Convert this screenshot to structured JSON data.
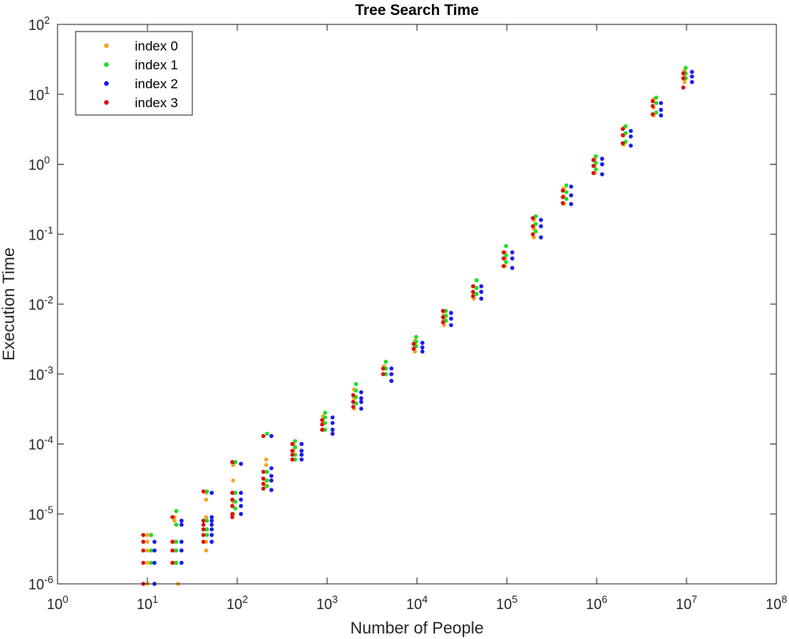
{
  "chart_data": {
    "type": "scatter",
    "title": "Tree Search Time",
    "xlabel": "Number of People",
    "ylabel": "Execution Time",
    "xscale": "log",
    "yscale": "log",
    "xlim": [
      1,
      100000000
    ],
    "ylim": [
      1e-06,
      100
    ],
    "grid": false,
    "legend_position": "top-left",
    "x_ticks": [
      {
        "base": "10",
        "exp": "0",
        "value": 1
      },
      {
        "base": "10",
        "exp": "1",
        "value": 10
      },
      {
        "base": "10",
        "exp": "2",
        "value": 100
      },
      {
        "base": "10",
        "exp": "3",
        "value": 1000
      },
      {
        "base": "10",
        "exp": "4",
        "value": 10000
      },
      {
        "base": "10",
        "exp": "5",
        "value": 100000
      },
      {
        "base": "10",
        "exp": "6",
        "value": 1000000
      },
      {
        "base": "10",
        "exp": "7",
        "value": 10000000
      },
      {
        "base": "10",
        "exp": "8",
        "value": 100000000
      }
    ],
    "y_ticks": [
      {
        "base": "10",
        "exp": "-6",
        "value": 1e-06
      },
      {
        "base": "10",
        "exp": "-5",
        "value": 1e-05
      },
      {
        "base": "10",
        "exp": "-4",
        "value": 0.0001
      },
      {
        "base": "10",
        "exp": "-3",
        "value": 0.001
      },
      {
        "base": "10",
        "exp": "-2",
        "value": 0.01
      },
      {
        "base": "10",
        "exp": "-1",
        "value": 0.1
      },
      {
        "base": "10",
        "exp": "0",
        "value": 1
      },
      {
        "base": "10",
        "exp": "1",
        "value": 10
      },
      {
        "base": "10",
        "exp": "2",
        "value": 100
      }
    ],
    "series": [
      {
        "name": "index 0",
        "color": "#f5a623",
        "points": [
          [
            10,
            5e-06
          ],
          [
            10,
            4e-06
          ],
          [
            10,
            3e-06
          ],
          [
            10,
            2e-06
          ],
          [
            10,
            1e-06
          ],
          [
            20,
            9e-06
          ],
          [
            20,
            8e-06
          ],
          [
            20,
            4e-06
          ],
          [
            20,
            3e-06
          ],
          [
            20,
            2e-06
          ],
          [
            22,
            1e-06
          ],
          [
            45,
            2e-05
          ],
          [
            45,
            1.6e-05
          ],
          [
            45,
            9e-06
          ],
          [
            45,
            6e-06
          ],
          [
            45,
            4e-06
          ],
          [
            45,
            3e-06
          ],
          [
            90,
            5e-05
          ],
          [
            90,
            3e-05
          ],
          [
            90,
            2e-05
          ],
          [
            90,
            1.5e-05
          ],
          [
            90,
            1e-05
          ],
          [
            210,
            6e-05
          ],
          [
            210,
            5e-05
          ],
          [
            210,
            4e-05
          ],
          [
            210,
            3e-05
          ],
          [
            210,
            2.5e-05
          ],
          [
            420,
            0.0001
          ],
          [
            420,
            8e-05
          ],
          [
            420,
            6e-05
          ],
          [
            900,
            0.00025
          ],
          [
            900,
            0.0002
          ],
          [
            900,
            0.00016
          ],
          [
            2000,
            0.0006
          ],
          [
            2000,
            0.00045
          ],
          [
            2000,
            0.00032
          ],
          [
            4300,
            0.0013
          ],
          [
            4300,
            0.001
          ],
          [
            9500,
            0.003
          ],
          [
            9500,
            0.0025
          ],
          [
            9500,
            0.0021
          ],
          [
            20000,
            0.007
          ],
          [
            20000,
            0.006
          ],
          [
            20000,
            0.005
          ],
          [
            43000,
            0.018
          ],
          [
            43000,
            0.014
          ],
          [
            43000,
            0.012
          ],
          [
            95000,
            0.055
          ],
          [
            95000,
            0.045
          ],
          [
            95000,
            0.035
          ],
          [
            200000,
            0.16
          ],
          [
            200000,
            0.12
          ],
          [
            200000,
            0.09
          ],
          [
            430000,
            0.45
          ],
          [
            430000,
            0.35
          ],
          [
            430000,
            0.27
          ],
          [
            950000,
            1.2
          ],
          [
            950000,
            0.95
          ],
          [
            950000,
            0.75
          ],
          [
            2000000,
            3.3
          ],
          [
            2000000,
            2.6
          ],
          [
            2000000,
            1.9
          ],
          [
            4300000,
            8.5
          ],
          [
            4300000,
            6.5
          ],
          [
            4300000,
            5
          ],
          [
            9500000,
            22
          ],
          [
            9500000,
            18
          ],
          [
            9500000,
            15
          ]
        ]
      },
      {
        "name": "index 1",
        "color": "#22dd22",
        "points": [
          [
            11,
            5e-06
          ],
          [
            11,
            3e-06
          ],
          [
            11,
            2e-06
          ],
          [
            21,
            1.1e-05
          ],
          [
            21,
            7e-06
          ],
          [
            21,
            4e-06
          ],
          [
            21,
            3e-06
          ],
          [
            21,
            2e-06
          ],
          [
            46,
            2.1e-05
          ],
          [
            46,
            8e-06
          ],
          [
            46,
            6e-06
          ],
          [
            46,
            5e-06
          ],
          [
            95,
            5.5e-05
          ],
          [
            95,
            2e-05
          ],
          [
            95,
            1.5e-05
          ],
          [
            95,
            1.2e-05
          ],
          [
            215,
            0.00014
          ],
          [
            215,
            4e-05
          ],
          [
            215,
            3e-05
          ],
          [
            215,
            2.5e-05
          ],
          [
            440,
            0.00011
          ],
          [
            440,
            9e-05
          ],
          [
            440,
            7e-05
          ],
          [
            440,
            6e-05
          ],
          [
            950,
            0.00028
          ],
          [
            950,
            0.00024
          ],
          [
            950,
            0.0002
          ],
          [
            950,
            0.00016
          ],
          [
            2100,
            0.00072
          ],
          [
            2100,
            0.00058
          ],
          [
            2100,
            0.00047
          ],
          [
            2100,
            0.00038
          ],
          [
            4500,
            0.0015
          ],
          [
            4500,
            0.0012
          ],
          [
            4500,
            0.001
          ],
          [
            9800,
            0.0034
          ],
          [
            9800,
            0.0029
          ],
          [
            9800,
            0.0025
          ],
          [
            21000,
            0.008
          ],
          [
            21000,
            0.0068
          ],
          [
            21000,
            0.0058
          ],
          [
            46000,
            0.022
          ],
          [
            46000,
            0.017
          ],
          [
            46000,
            0.014
          ],
          [
            98000,
            0.068
          ],
          [
            98000,
            0.05
          ],
          [
            98000,
            0.04
          ],
          [
            210000,
            0.18
          ],
          [
            210000,
            0.14
          ],
          [
            210000,
            0.11
          ],
          [
            460000,
            0.5
          ],
          [
            460000,
            0.4
          ],
          [
            460000,
            0.32
          ],
          [
            980000,
            1.3
          ],
          [
            980000,
            1.05
          ],
          [
            980000,
            0.85
          ],
          [
            2100000,
            3.5
          ],
          [
            2100000,
            2.8
          ],
          [
            2100000,
            2.1
          ],
          [
            4600000,
            9
          ],
          [
            4600000,
            7.5
          ],
          [
            4600000,
            5.5
          ],
          [
            9800000,
            24
          ],
          [
            9800000,
            20
          ],
          [
            9800000,
            17
          ]
        ]
      },
      {
        "name": "index 2",
        "color": "#1a1aee",
        "points": [
          [
            12,
            4e-06
          ],
          [
            12,
            3e-06
          ],
          [
            12,
            2e-06
          ],
          [
            12,
            1e-06
          ],
          [
            24,
            8e-06
          ],
          [
            24,
            7e-06
          ],
          [
            24,
            4e-06
          ],
          [
            24,
            3e-06
          ],
          [
            24,
            2e-06
          ],
          [
            52,
            2e-05
          ],
          [
            52,
            9e-06
          ],
          [
            52,
            8e-06
          ],
          [
            52,
            7e-06
          ],
          [
            52,
            6e-06
          ],
          [
            52,
            5e-06
          ],
          [
            52,
            4e-06
          ],
          [
            110,
            5.2e-05
          ],
          [
            110,
            2e-05
          ],
          [
            110,
            1.6e-05
          ],
          [
            110,
            1.3e-05
          ],
          [
            110,
            1e-05
          ],
          [
            240,
            0.00013
          ],
          [
            240,
            4.5e-05
          ],
          [
            240,
            3.5e-05
          ],
          [
            240,
            3e-05
          ],
          [
            240,
            2.2e-05
          ],
          [
            520,
            0.0001
          ],
          [
            520,
            8e-05
          ],
          [
            520,
            7e-05
          ],
          [
            520,
            6e-05
          ],
          [
            1150,
            0.00024
          ],
          [
            1150,
            0.0002
          ],
          [
            1150,
            0.00016
          ],
          [
            1150,
            0.00014
          ],
          [
            2400,
            0.00055
          ],
          [
            2400,
            0.00045
          ],
          [
            2400,
            0.0004
          ],
          [
            2400,
            0.00032
          ],
          [
            5200,
            0.0012
          ],
          [
            5200,
            0.001
          ],
          [
            5200,
            0.0008
          ],
          [
            11500,
            0.0028
          ],
          [
            11500,
            0.0024
          ],
          [
            11500,
            0.0021
          ],
          [
            24000,
            0.0075
          ],
          [
            24000,
            0.0062
          ],
          [
            24000,
            0.005
          ],
          [
            52000,
            0.018
          ],
          [
            52000,
            0.015
          ],
          [
            52000,
            0.012
          ],
          [
            115000,
            0.055
          ],
          [
            115000,
            0.045
          ],
          [
            115000,
            0.033
          ],
          [
            240000,
            0.16
          ],
          [
            240000,
            0.13
          ],
          [
            240000,
            0.09
          ],
          [
            520000,
            0.48
          ],
          [
            520000,
            0.36
          ],
          [
            520000,
            0.27
          ],
          [
            1150000,
            1.2
          ],
          [
            1150000,
            1
          ],
          [
            1150000,
            0.72
          ],
          [
            2400000,
            3
          ],
          [
            2400000,
            2.5
          ],
          [
            2400000,
            1.85
          ],
          [
            5200000,
            7.5
          ],
          [
            5200000,
            6
          ],
          [
            5200000,
            5
          ],
          [
            11500000,
            21
          ],
          [
            11500000,
            18
          ],
          [
            11500000,
            15
          ]
        ]
      },
      {
        "name": "index 3",
        "color": "#dd1111",
        "points": [
          [
            9,
            5e-06
          ],
          [
            9,
            4e-06
          ],
          [
            9,
            3e-06
          ],
          [
            9,
            2e-06
          ],
          [
            9,
            1e-06
          ],
          [
            19,
            9e-06
          ],
          [
            19,
            4e-06
          ],
          [
            19,
            3e-06
          ],
          [
            19,
            2e-06
          ],
          [
            42,
            2.1e-05
          ],
          [
            42,
            8e-06
          ],
          [
            42,
            7e-06
          ],
          [
            42,
            6e-06
          ],
          [
            42,
            5e-06
          ],
          [
            42,
            4e-06
          ],
          [
            88,
            5.5e-05
          ],
          [
            88,
            2e-05
          ],
          [
            88,
            1.6e-05
          ],
          [
            88,
            1.3e-05
          ],
          [
            88,
            1e-05
          ],
          [
            88,
            9e-06
          ],
          [
            195,
            0.00013
          ],
          [
            195,
            4e-05
          ],
          [
            195,
            3.2e-05
          ],
          [
            195,
            2.7e-05
          ],
          [
            195,
            2.3e-05
          ],
          [
            410,
            0.0001
          ],
          [
            410,
            8e-05
          ],
          [
            410,
            7e-05
          ],
          [
            410,
            6e-05
          ],
          [
            880,
            0.00022
          ],
          [
            880,
            0.00019
          ],
          [
            880,
            0.00016
          ],
          [
            1950,
            0.0005
          ],
          [
            1950,
            0.0004
          ],
          [
            1950,
            0.00034
          ],
          [
            4200,
            0.0012
          ],
          [
            4200,
            0.001
          ],
          [
            9200,
            0.0027
          ],
          [
            9200,
            0.0023
          ],
          [
            19500,
            0.008
          ],
          [
            19500,
            0.0065
          ],
          [
            19500,
            0.0055
          ],
          [
            42000,
            0.018
          ],
          [
            42000,
            0.015
          ],
          [
            42000,
            0.013
          ],
          [
            92000,
            0.055
          ],
          [
            92000,
            0.045
          ],
          [
            92000,
            0.035
          ],
          [
            195000,
            0.17
          ],
          [
            195000,
            0.13
          ],
          [
            195000,
            0.1
          ],
          [
            420000,
            0.42
          ],
          [
            420000,
            0.34
          ],
          [
            420000,
            0.28
          ],
          [
            920000,
            1.15
          ],
          [
            920000,
            0.95
          ],
          [
            920000,
            0.75
          ],
          [
            1950000,
            3.2
          ],
          [
            1950000,
            2.6
          ],
          [
            1950000,
            2
          ],
          [
            4200000,
            8
          ],
          [
            4200000,
            6.8
          ],
          [
            4200000,
            5.2
          ],
          [
            9200000,
            20
          ],
          [
            9200000,
            17
          ],
          [
            9200000,
            12.5
          ]
        ]
      }
    ]
  }
}
